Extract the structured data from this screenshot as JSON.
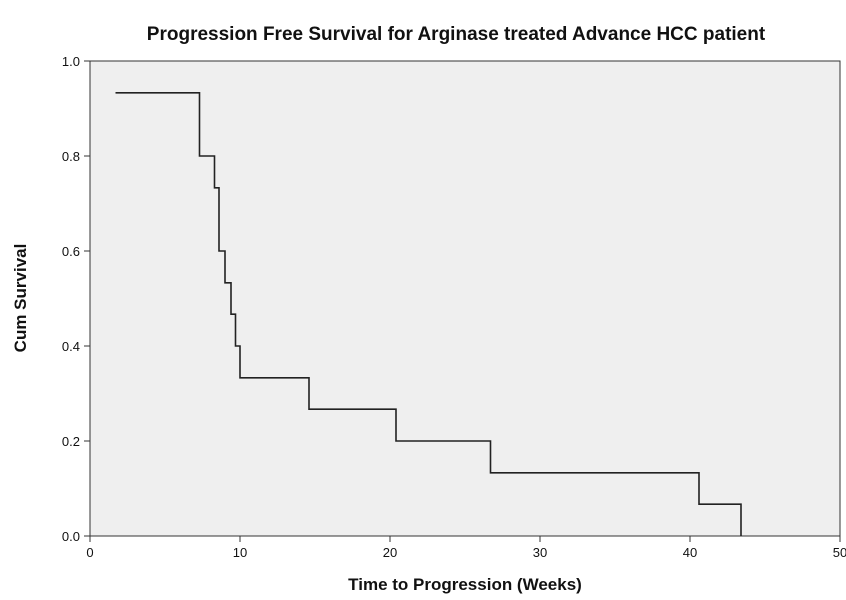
{
  "chart_data": {
    "type": "line",
    "title": "Progression Free  Survival for Arginase treated Advance HCC patient",
    "xlabel": "Time to Progression (Weeks)",
    "ylabel": "Cum Survival",
    "xlim": [
      0,
      50
    ],
    "ylim": [
      0.0,
      1.0
    ],
    "x_ticks": [
      "0",
      "10",
      "20",
      "30",
      "40",
      "50"
    ],
    "y_ticks": [
      "0.0",
      "0.2",
      "0.4",
      "0.6",
      "0.8",
      "1.0"
    ],
    "grid": false,
    "colors": {
      "plot_background": "#efefef",
      "line": "#222222",
      "frame": "#333333"
    },
    "series": [
      {
        "step": "post",
        "x": [
          1.7,
          7.3,
          8.3,
          8.6,
          9.0,
          9.4,
          9.7,
          10.0,
          14.6,
          20.4,
          26.7,
          40.6,
          43.4
        ],
        "y": [
          0.933,
          0.8,
          0.733,
          0.6,
          0.533,
          0.467,
          0.4,
          0.333,
          0.267,
          0.2,
          0.133,
          0.067,
          0.0
        ]
      }
    ]
  }
}
